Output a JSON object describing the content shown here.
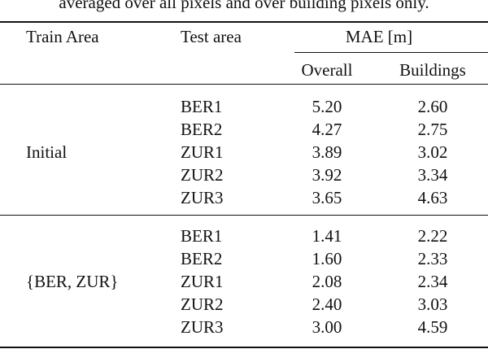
{
  "caption": "averaged over all pixels and over building pixels only.",
  "header": {
    "train_area": "Train Area",
    "test_area": "Test area",
    "mae": "MAE [m]",
    "overall": "Overall",
    "buildings": "Buildings"
  },
  "groups": [
    {
      "train": "Initial",
      "rows": [
        [
          "BER1",
          "5.20",
          "2.60"
        ],
        [
          "BER2",
          "4.27",
          "2.75"
        ],
        [
          "ZUR1",
          "3.89",
          "3.02"
        ],
        [
          "ZUR2",
          "3.92",
          "3.34"
        ],
        [
          "ZUR3",
          "3.65",
          "4.63"
        ]
      ]
    },
    {
      "train": "{BER, ZUR}",
      "rows": [
        [
          "BER1",
          "1.41",
          "2.22"
        ],
        [
          "BER2",
          "1.60",
          "2.33"
        ],
        [
          "ZUR1",
          "2.08",
          "2.34"
        ],
        [
          "ZUR2",
          "2.40",
          "3.03"
        ],
        [
          "ZUR3",
          "3.00",
          "4.59"
        ]
      ]
    }
  ]
}
